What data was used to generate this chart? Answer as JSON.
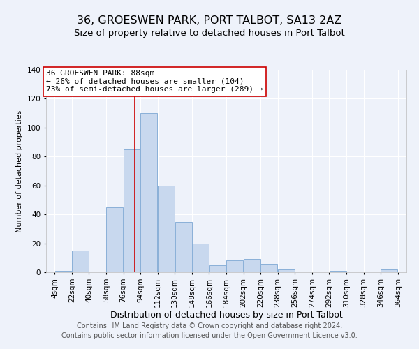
{
  "title1": "36, GROESWEN PARK, PORT TALBOT, SA13 2AZ",
  "title2": "Size of property relative to detached houses in Port Talbot",
  "xlabel": "Distribution of detached houses by size in Port Talbot",
  "ylabel": "Number of detached properties",
  "bin_edges": [
    4,
    22,
    40,
    58,
    76,
    94,
    112,
    130,
    148,
    166,
    184,
    202,
    220,
    238,
    256,
    274,
    292,
    310,
    328,
    346,
    364
  ],
  "bar_heights": [
    1,
    15,
    0,
    45,
    85,
    110,
    60,
    35,
    20,
    5,
    8,
    9,
    6,
    2,
    0,
    0,
    1,
    0,
    0,
    2
  ],
  "bar_color": "#c8d8ee",
  "bar_edge_color": "#8ab0d8",
  "bar_linewidth": 0.7,
  "vline_x": 88,
  "vline_color": "#cc0000",
  "annotation_title": "36 GROESWEN PARK: 88sqm",
  "annotation_line1": "← 26% of detached houses are smaller (104)",
  "annotation_line2": "73% of semi-detached houses are larger (289) →",
  "ylim": [
    0,
    140
  ],
  "yticks": [
    0,
    20,
    40,
    60,
    80,
    100,
    120,
    140
  ],
  "tick_labels": [
    "4sqm",
    "22sqm",
    "40sqm",
    "58sqm",
    "76sqm",
    "94sqm",
    "112sqm",
    "130sqm",
    "148sqm",
    "166sqm",
    "184sqm",
    "202sqm",
    "220sqm",
    "238sqm",
    "256sqm",
    "274sqm",
    "292sqm",
    "310sqm",
    "328sqm",
    "346sqm",
    "364sqm"
  ],
  "footer1": "Contains HM Land Registry data © Crown copyright and database right 2024.",
  "footer2": "Contains public sector information licensed under the Open Government Licence v3.0.",
  "background_color": "#eef2fa",
  "grid_color": "#ffffff",
  "title1_fontsize": 11.5,
  "title2_fontsize": 9.5,
  "xlabel_fontsize": 9,
  "ylabel_fontsize": 8,
  "annot_fontsize": 8,
  "tick_fontsize": 7.5,
  "footer_fontsize": 7
}
